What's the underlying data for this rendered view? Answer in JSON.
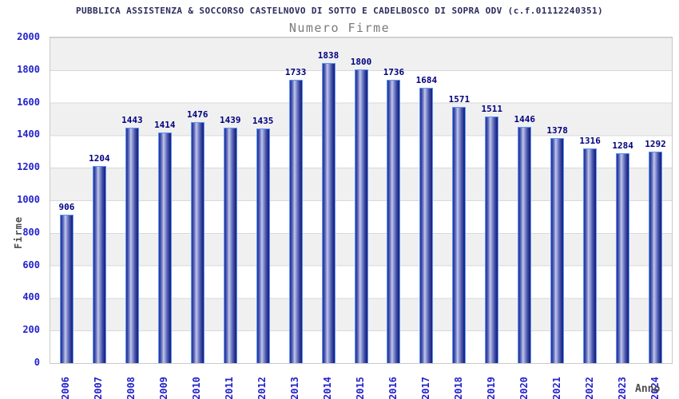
{
  "header": {
    "title": "PUBBLICA ASSISTENZA & SOCCORSO CASTELNOVO DI SOTTO E CADELBOSCO DI SOPRA ODV (c.f.01112240351)",
    "subtitle": "Numero Firme"
  },
  "chart_data": {
    "type": "bar",
    "title": "Numero Firme",
    "xlabel": "Anno",
    "ylabel": "Firme",
    "categories": [
      "2006",
      "2007",
      "2008",
      "2009",
      "2010",
      "2011",
      "2012",
      "2013",
      "2014",
      "2015",
      "2016",
      "2017",
      "2018",
      "2019",
      "2020",
      "2021",
      "2022",
      "2023",
      "2024"
    ],
    "values": [
      906,
      1204,
      1443,
      1414,
      1476,
      1439,
      1435,
      1733,
      1838,
      1800,
      1736,
      1684,
      1571,
      1511,
      1446,
      1378,
      1316,
      1284,
      1292
    ],
    "ylim": [
      0,
      2000
    ],
    "ytick_step": 200,
    "grid": "horizontal-bands",
    "legend_position": "none",
    "band_colors": [
      "#f0f0f0",
      "#ffffff"
    ],
    "colors": {
      "bar_dark": "#1c2584",
      "bar_light": "#c3c9ea",
      "bar_border": "#5b95fb",
      "tick_label": "#2222cc",
      "value_label": "#00007e",
      "title": "#2b2b5e",
      "subtitle": "#7a7a7a",
      "axis_title": "#4d4d4d",
      "plot_border": "#c9c9c9",
      "gridline": "#d9d9d9"
    }
  }
}
